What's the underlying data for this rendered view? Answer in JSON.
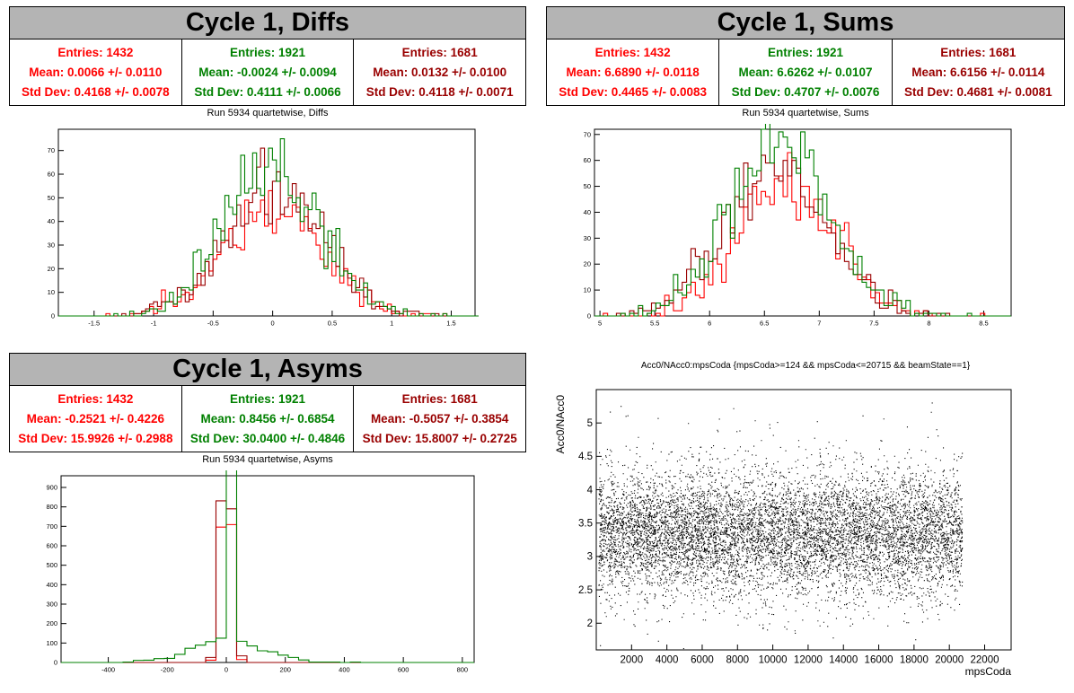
{
  "colors": {
    "red": "#ff0000",
    "green": "#008000",
    "darkred": "#990000"
  },
  "panels": {
    "diffs": {
      "title": "Cycle 1, Diffs",
      "subtitle": "Run 5934 quartetwise, Diffs",
      "stats": [
        {
          "entries": "Entries: 1432",
          "mean": "Mean: 0.0066 +/- 0.0110",
          "std": "Std Dev: 0.4168 +/- 0.0078",
          "color": "#ff0000"
        },
        {
          "entries": "Entries: 1921",
          "mean": "Mean: -0.0024 +/- 0.0094",
          "std": "Std Dev: 0.4111 +/- 0.0066",
          "color": "#008000"
        },
        {
          "entries": "Entries: 1681",
          "mean": "Mean: 0.0132 +/- 0.0100",
          "std": "Std Dev: 0.4118 +/- 0.0071",
          "color": "#990000"
        }
      ]
    },
    "sums": {
      "title": "Cycle 1, Sums",
      "subtitle": "Run 5934 quartetwise, Sums",
      "stats": [
        {
          "entries": "Entries: 1432",
          "mean": "Mean: 6.6890 +/- 0.0118",
          "std": "Std Dev: 0.4465 +/- 0.0083",
          "color": "#ff0000"
        },
        {
          "entries": "Entries: 1921",
          "mean": "Mean: 6.6262 +/- 0.0107",
          "std": "Std Dev: 0.4707 +/- 0.0076",
          "color": "#008000"
        },
        {
          "entries": "Entries: 1681",
          "mean": "Mean: 6.6156 +/- 0.0114",
          "std": "Std Dev: 0.4681 +/- 0.0081",
          "color": "#990000"
        }
      ]
    },
    "asyms": {
      "title": "Cycle 1, Asyms",
      "subtitle": "Run 5934 quartetwise, Asyms",
      "stats": [
        {
          "entries": "Entries: 1432",
          "mean": "Mean: -0.2521 +/- 0.4226",
          "std": "Std Dev: 15.9926 +/- 0.2988",
          "color": "#ff0000"
        },
        {
          "entries": "Entries: 1921",
          "mean": "Mean: 0.8456 +/- 0.6854",
          "std": "Std Dev: 30.0400 +/- 0.4846",
          "color": "#008000"
        },
        {
          "entries": "Entries: 1681",
          "mean": "Mean: -0.5057 +/- 0.3854",
          "std": "Std Dev: 15.8007 +/- 0.2725",
          "color": "#990000"
        }
      ]
    },
    "scatter": {
      "title": "Acc0/NAcc0:mpsCoda {mpsCoda>=124 && mpsCoda<=20715 && beamState==1}"
    }
  },
  "chart_data": [
    {
      "type": "histogram",
      "title": "Run 5934 quartetwise, Diffs",
      "xlim": [
        -1.8,
        1.7
      ],
      "ylim": [
        0,
        79
      ],
      "xticks": [
        "-1.5",
        "-1",
        "-0.5",
        "0",
        "0.5",
        "1",
        "1.5"
      ],
      "xtick_values": [
        -1.5,
        -1,
        -0.5,
        0,
        0.5,
        1,
        1.5
      ],
      "yticks": [
        "0",
        "10",
        "20",
        "30",
        "40",
        "50",
        "60",
        "70"
      ],
      "ytick_values": [
        0,
        10,
        20,
        30,
        40,
        50,
        60,
        70
      ],
      "series": [
        {
          "entries": 1432,
          "mean": 0.0066,
          "std": 0.4168,
          "color": "#ff0000"
        },
        {
          "entries": 1921,
          "mean": -0.0024,
          "std": 0.4111,
          "color": "#008000"
        },
        {
          "entries": 1681,
          "mean": 0.0132,
          "std": 0.4118,
          "color": "#990000"
        }
      ],
      "bin_width": 0.0333
    },
    {
      "type": "histogram",
      "title": "Run 5934 quartetwise, Sums",
      "xlim": [
        4.95,
        8.75
      ],
      "ylim": [
        0,
        72
      ],
      "xticks": [
        "5",
        "5.5",
        "6",
        "6.5",
        "7",
        "7.5",
        "8",
        "8.5"
      ],
      "xtick_values": [
        5,
        5.5,
        6,
        6.5,
        7,
        7.5,
        8,
        8.5
      ],
      "yticks": [
        "0",
        "10",
        "20",
        "30",
        "40",
        "50",
        "60",
        "70"
      ],
      "ytick_values": [
        0,
        10,
        20,
        30,
        40,
        50,
        60,
        70
      ],
      "series": [
        {
          "entries": 1432,
          "mean": 6.689,
          "std": 0.4465,
          "color": "#ff0000"
        },
        {
          "entries": 1921,
          "mean": 6.6262,
          "std": 0.4707,
          "color": "#008000"
        },
        {
          "entries": 1681,
          "mean": 6.6156,
          "std": 0.4681,
          "color": "#990000"
        }
      ],
      "bin_width": 0.04
    },
    {
      "type": "histogram",
      "title": "Run 5934 quartetwise, Asyms",
      "xlim": [
        -560,
        840
      ],
      "ylim": [
        0,
        960
      ],
      "xticks": [
        "-400",
        "-200",
        "0",
        "200",
        "400",
        "600",
        "800"
      ],
      "xtick_values": [
        -400,
        -200,
        0,
        200,
        400,
        600,
        800
      ],
      "yticks": [
        "0",
        "100",
        "200",
        "300",
        "400",
        "500",
        "600",
        "700",
        "800",
        "900"
      ],
      "ytick_values": [
        0,
        100,
        200,
        300,
        400,
        500,
        600,
        700,
        800,
        900
      ],
      "series": [
        {
          "entries": 1432,
          "mean": -0.2521,
          "std": 15.9926,
          "color": "#ff0000"
        },
        {
          "entries": 1921,
          "mean": 0.8456,
          "std": 30.04,
          "color": "#008000",
          "peak": 920
        },
        {
          "entries": 1681,
          "mean": -0.5057,
          "std": 15.8007,
          "color": "#990000"
        }
      ],
      "bin_width": 35
    },
    {
      "type": "scatter",
      "title": "Acc0/NAcc0:mpsCoda {mpsCoda>=124 && mpsCoda<=20715 && beamState==1}",
      "xlabel": "mpsCoda",
      "ylabel": "Acc0/NAcc0",
      "xlim": [
        0,
        23500
      ],
      "ylim": [
        1.6,
        5.5
      ],
      "x_range": [
        124,
        20715
      ],
      "y_center": 3.35,
      "y_spread": 0.45,
      "n_points": 9000,
      "xticks": [
        "2000",
        "4000",
        "6000",
        "8000",
        "10000",
        "12000",
        "14000",
        "16000",
        "18000",
        "20000",
        "22000"
      ],
      "xtick_values": [
        2000,
        4000,
        6000,
        8000,
        10000,
        12000,
        14000,
        16000,
        18000,
        20000,
        22000
      ],
      "yticks": [
        "2",
        "2.5",
        "3",
        "3.5",
        "4",
        "4.5",
        "5"
      ],
      "ytick_values": [
        2,
        2.5,
        3,
        3.5,
        4,
        4.5,
        5
      ]
    }
  ]
}
